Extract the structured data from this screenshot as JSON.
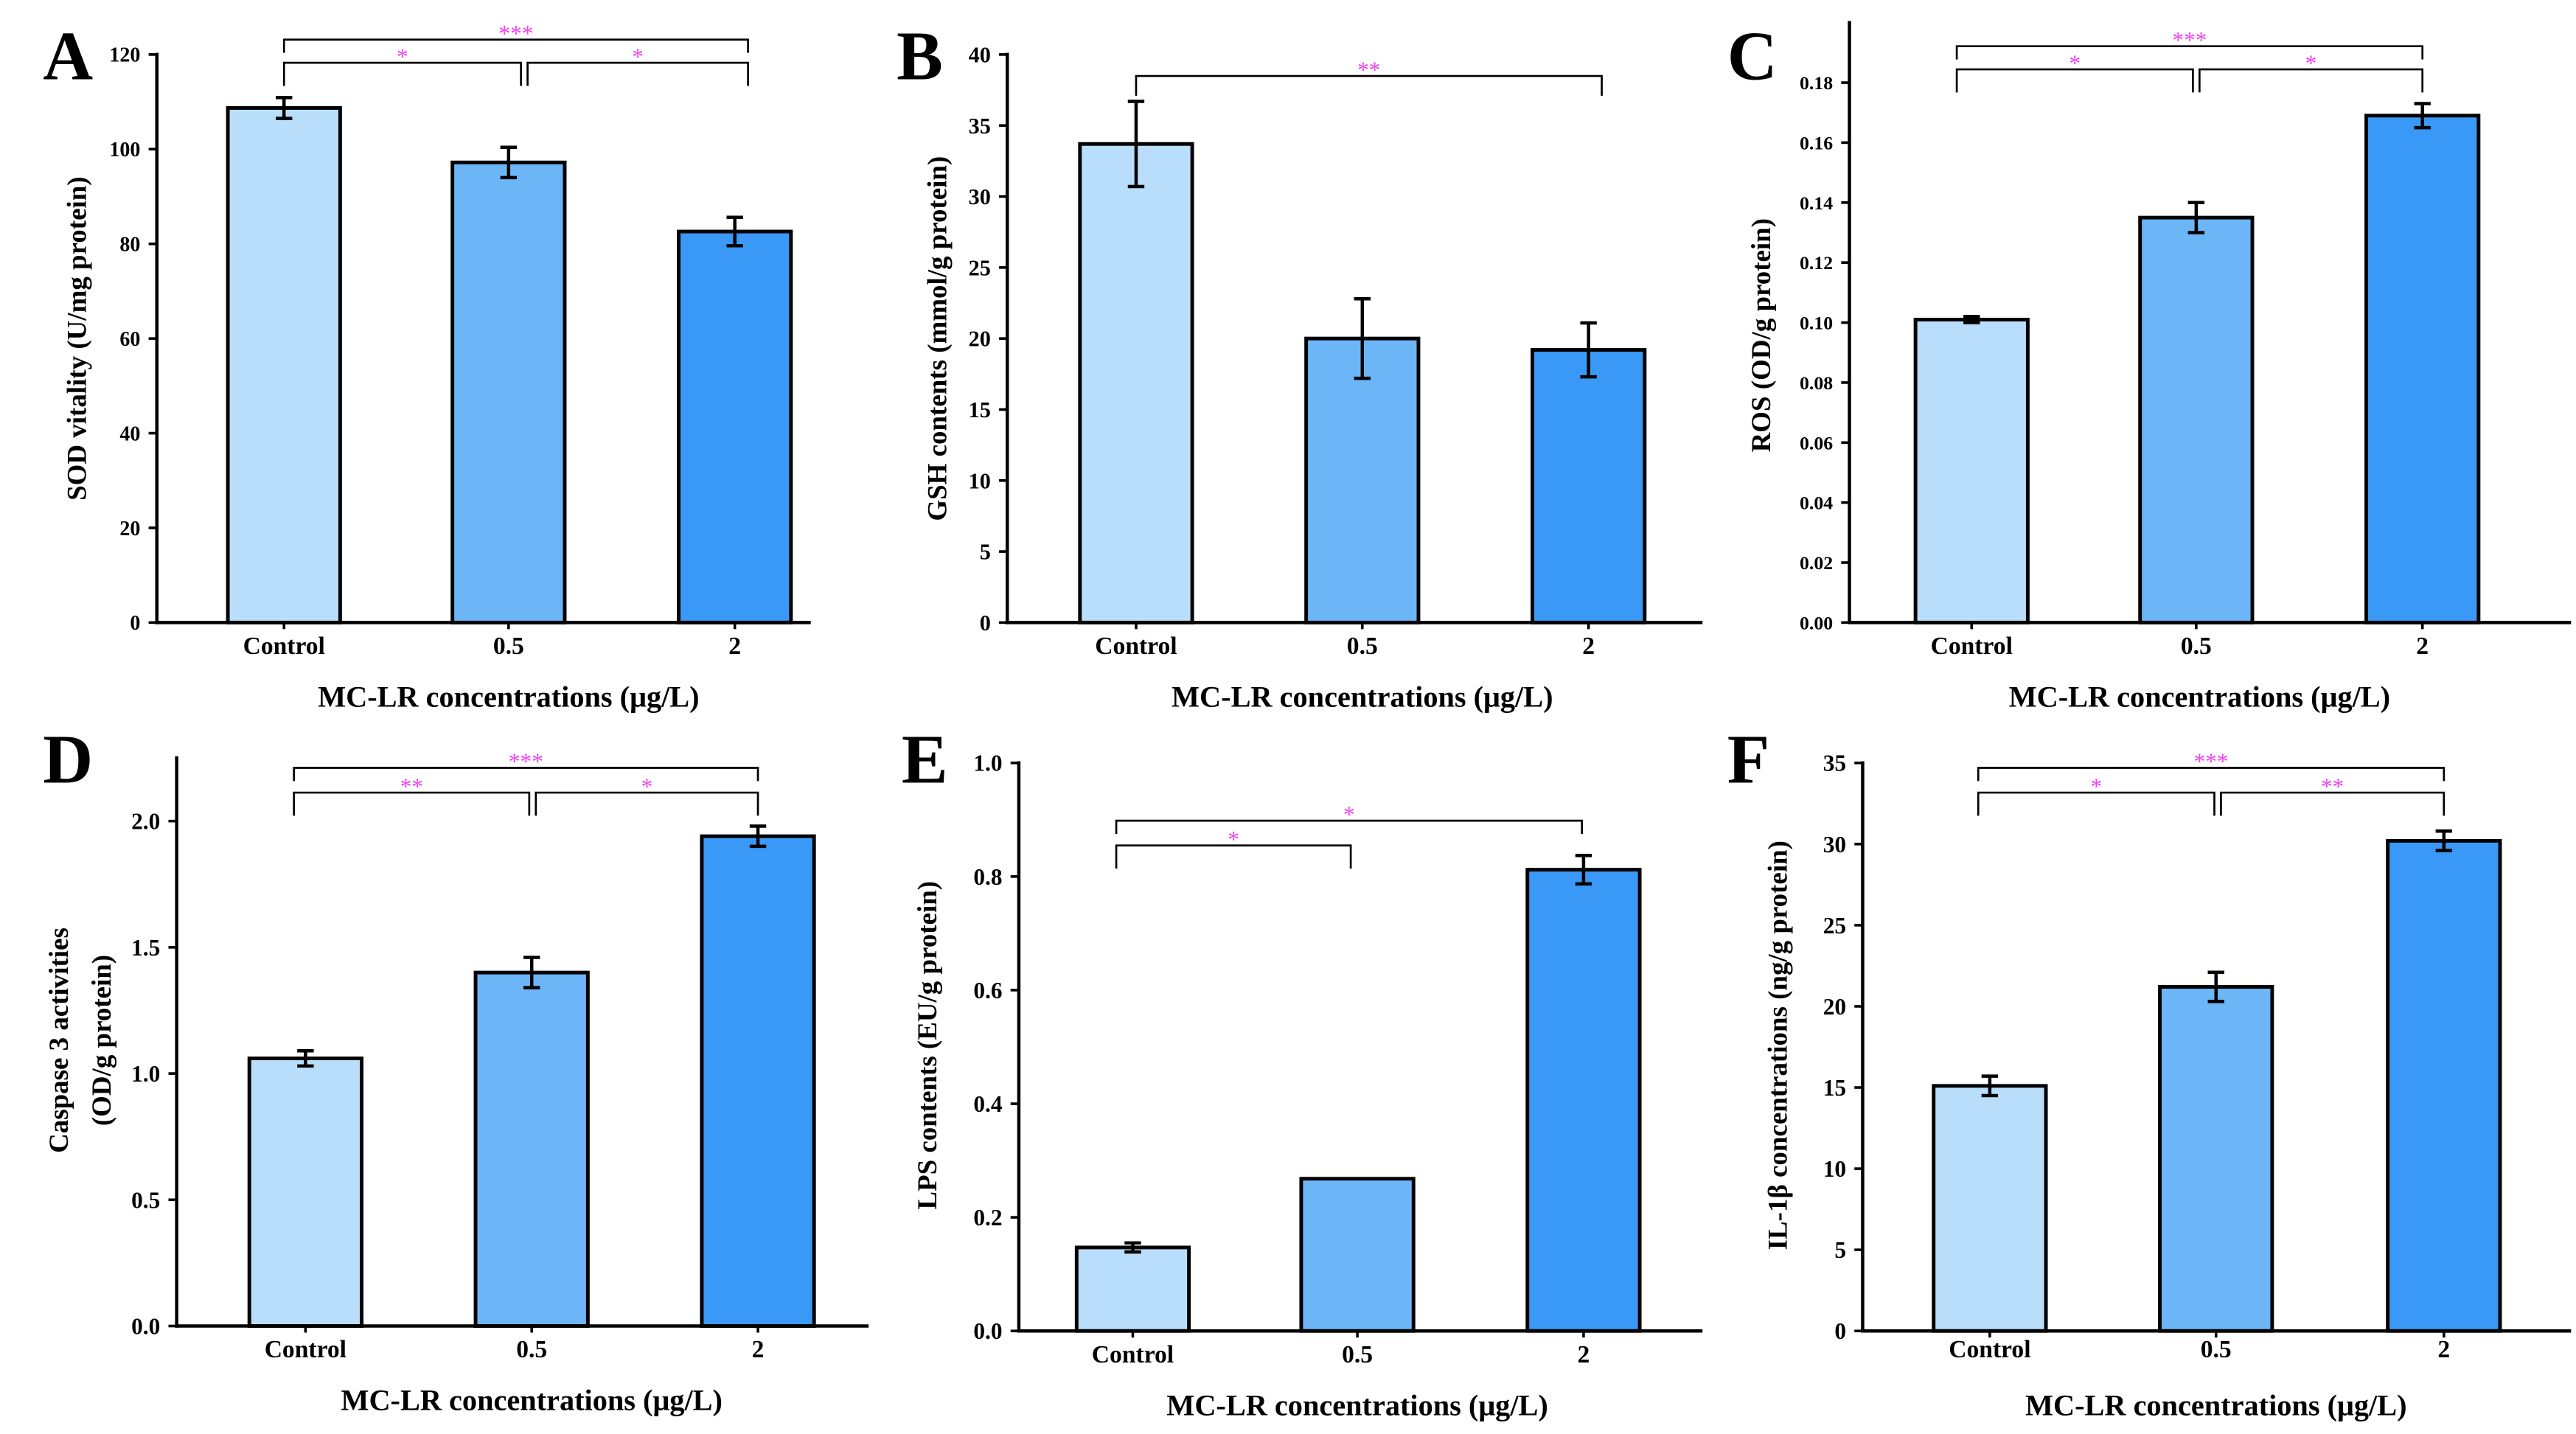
{
  "style": {
    "axis_color": "#000000",
    "significance_color": "#f040f0"
  },
  "chart_data": [
    {
      "panel": "A",
      "type": "bar",
      "categories": [
        "Control",
        "0.5",
        "2"
      ],
      "values": [
        108.7,
        97.2,
        82.6
      ],
      "errors": [
        2.2,
        3.2,
        3.0
      ],
      "xlabel": "MC-LR concentrations (μg/L)",
      "ylabel_lines": [
        "SOD vitality (U/mg protein)"
      ],
      "ylim": [
        0,
        120
      ],
      "yticks": [
        0,
        20,
        40,
        60,
        80,
        100,
        120
      ],
      "ytick_labels": [
        "0",
        "20",
        "40",
        "60",
        "80",
        "100",
        "120"
      ],
      "significance": [
        {
          "pair": [
            0,
            2
          ],
          "label": "***"
        },
        {
          "pair": [
            0,
            1
          ],
          "label": "*"
        },
        {
          "pair": [
            1,
            2
          ],
          "label": "*"
        }
      ],
      "colors": [
        "#b9defb",
        "#6cb6f7",
        "#3a98f6"
      ],
      "grid": false
    },
    {
      "panel": "B",
      "type": "bar",
      "categories": [
        "Control",
        "0.5",
        "2"
      ],
      "values": [
        33.7,
        20.0,
        19.2
      ],
      "errors": [
        3.0,
        2.8,
        1.9
      ],
      "xlabel": "MC-LR concentrations (μg/L)",
      "ylabel_lines": [
        "GSH contents (mmol/g protein)"
      ],
      "ylim": [
        0,
        40
      ],
      "yticks": [
        0,
        5,
        10,
        15,
        20,
        25,
        30,
        35,
        40
      ],
      "ytick_labels": [
        "0",
        "5",
        "10",
        "15",
        "20",
        "25",
        "30",
        "35",
        "40"
      ],
      "significance": [
        {
          "pair": [
            0,
            2
          ],
          "label": "**"
        }
      ],
      "colors": [
        "#b9defb",
        "#6cb6f7",
        "#3a98f6"
      ],
      "grid": false
    },
    {
      "panel": "C",
      "type": "bar",
      "categories": [
        "Control",
        "0.5",
        "2"
      ],
      "values": [
        0.101,
        0.135,
        0.169
      ],
      "errors": [
        0.001,
        0.005,
        0.004
      ],
      "xlabel": "MC-LR concentrations (μg/L)",
      "ylabel_lines": [
        "ROS (OD/g protein)"
      ],
      "ylim": [
        0,
        0.2
      ],
      "yticks": [
        0,
        0.02,
        0.04,
        0.06,
        0.08,
        0.1,
        0.12,
        0.14,
        0.16,
        0.18
      ],
      "ytick_labels": [
        "0.00",
        "0.02",
        "0.04",
        "0.06",
        "0.08",
        "0.10",
        "0.12",
        "0.14",
        "0.16",
        "0.18"
      ],
      "significance": [
        {
          "pair": [
            0,
            2
          ],
          "label": "***"
        },
        {
          "pair": [
            0,
            1
          ],
          "label": "*"
        },
        {
          "pair": [
            1,
            2
          ],
          "label": "*"
        }
      ],
      "colors": [
        "#b9defb",
        "#6cb6f7",
        "#3a98f6"
      ],
      "grid": false
    },
    {
      "panel": "D",
      "type": "bar",
      "categories": [
        "Control",
        "0.5",
        "2"
      ],
      "values": [
        1.06,
        1.4,
        1.94
      ],
      "errors": [
        0.03,
        0.06,
        0.04
      ],
      "xlabel": "MC-LR concentrations (μg/L)",
      "ylabel_lines": [
        "Caspase 3 activities",
        "(OD/g protein)"
      ],
      "ylim": [
        0,
        2.25
      ],
      "yticks": [
        0,
        0.5,
        1.0,
        1.5,
        2.0
      ],
      "ytick_labels": [
        "0.0",
        "0.5",
        "1.0",
        "1.5",
        "2.0"
      ],
      "significance": [
        {
          "pair": [
            0,
            2
          ],
          "label": "***"
        },
        {
          "pair": [
            0,
            1
          ],
          "label": "**"
        },
        {
          "pair": [
            1,
            2
          ],
          "label": "*"
        }
      ],
      "colors": [
        "#b9defb",
        "#6cb6f7",
        "#3a98f6"
      ],
      "grid": false
    },
    {
      "panel": "E",
      "type": "bar",
      "categories": [
        "Control",
        "0.5",
        "2"
      ],
      "values": [
        0.147,
        0.268,
        0.812
      ],
      "errors": [
        0.008,
        0,
        0.025
      ],
      "xlabel": "MC-LR concentrations (μg/L)",
      "ylabel_lines": [
        "LPS contents (EU/g protein)"
      ],
      "ylim": [
        0,
        1.0
      ],
      "yticks": [
        0,
        0.2,
        0.4,
        0.6,
        0.8,
        1.0
      ],
      "ytick_labels": [
        "0.0",
        "0.2",
        "0.4",
        "0.6",
        "0.8",
        "1.0"
      ],
      "significance": [
        {
          "pair": [
            0,
            2
          ],
          "label": "*"
        },
        {
          "pair": [
            0,
            1
          ],
          "label": "*"
        }
      ],
      "colors": [
        "#b9defb",
        "#6cb6f7",
        "#3a98f6"
      ],
      "grid": false
    },
    {
      "panel": "F",
      "type": "bar",
      "categories": [
        "Control",
        "0.5",
        "2"
      ],
      "values": [
        15.1,
        21.2,
        30.2
      ],
      "errors": [
        0.6,
        0.9,
        0.6
      ],
      "xlabel": "MC-LR concentrations (μg/L)",
      "ylabel_lines": [
        "IL-1β concentrations (ng/g protein)"
      ],
      "ylim": [
        0,
        35
      ],
      "yticks": [
        0,
        5,
        10,
        15,
        20,
        25,
        30,
        35
      ],
      "ytick_labels": [
        "0",
        "5",
        "10",
        "15",
        "20",
        "25",
        "30",
        "35"
      ],
      "significance": [
        {
          "pair": [
            0,
            2
          ],
          "label": "***"
        },
        {
          "pair": [
            0,
            1
          ],
          "label": "*"
        },
        {
          "pair": [
            1,
            2
          ],
          "label": "**"
        }
      ],
      "colors": [
        "#b9defb",
        "#6cb6f7",
        "#3a98f6"
      ],
      "grid": false
    }
  ]
}
